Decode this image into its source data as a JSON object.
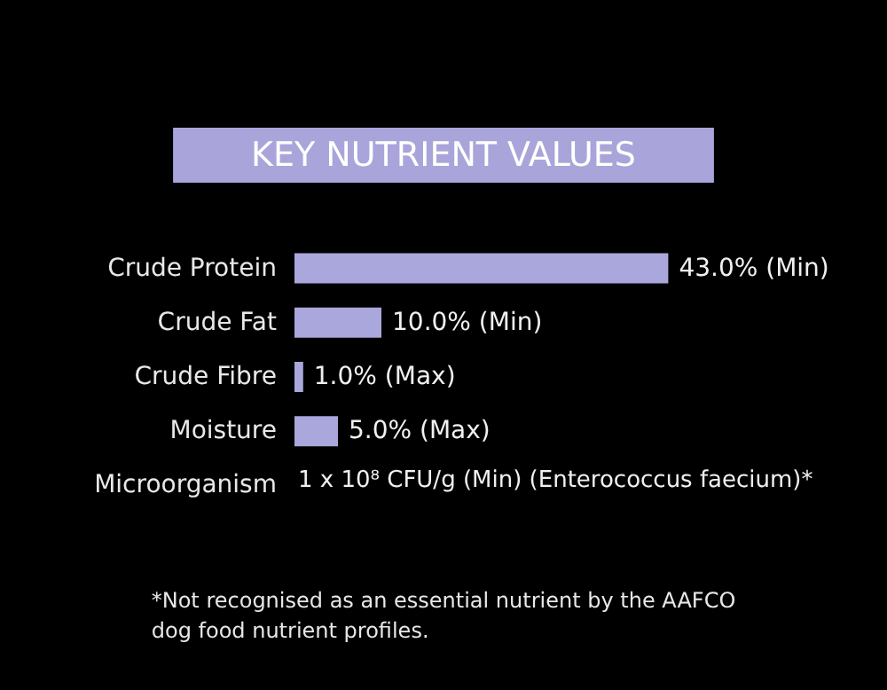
{
  "chart_data": {
    "type": "bar",
    "orientation": "horizontal",
    "title": "KEY NUTRIENT VALUES",
    "categories": [
      "Crude Protein",
      "Crude Fat",
      "Crude Fibre",
      "Moisture",
      "Microorganism"
    ],
    "values": [
      43,
      10,
      1,
      5,
      null
    ],
    "value_labels": [
      "43.0% (Min)",
      "10.0% (Min)",
      "1.0% (Max)",
      "5.0% (Max)",
      "1 x 10⁸ CFU/g (Min) (Enterococcus faecium)*"
    ],
    "color": "#aaa7dc",
    "annotations": [
      "*Not recognised as an essential nutrient by the AAFCO dog food nutrient profiles."
    ]
  }
}
